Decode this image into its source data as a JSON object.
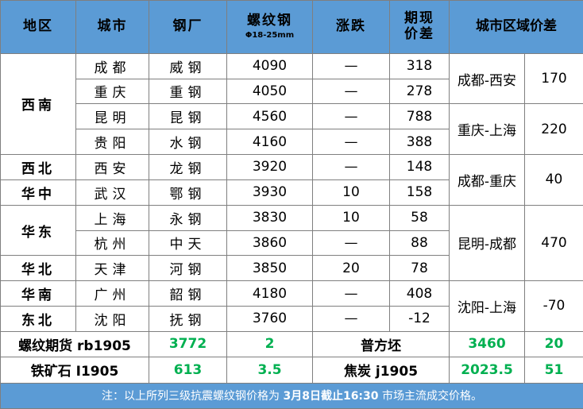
{
  "header": {
    "region": "地区",
    "city": "城市",
    "mill": "钢厂",
    "rebar": "螺纹钢",
    "rebar_spec": "Φ18-25mm",
    "change": "涨跌",
    "basis_line1": "期现",
    "basis_line2": "价差",
    "city_spread": "城市区域价差"
  },
  "rows": [
    {
      "city": "成都",
      "mill": "威钢",
      "price": "4090",
      "change": "—",
      "basis": "318"
    },
    {
      "city": "重庆",
      "mill": "重钢",
      "price": "4050",
      "change": "—",
      "basis": "278"
    },
    {
      "city": "昆明",
      "mill": "昆钢",
      "price": "4560",
      "change": "—",
      "basis": "788"
    },
    {
      "city": "贵阳",
      "mill": "水钢",
      "price": "4160",
      "change": "—",
      "basis": "388"
    },
    {
      "city": "西安",
      "mill": "龙钢",
      "price": "3920",
      "change": "—",
      "basis": "148"
    },
    {
      "city": "武汉",
      "mill": "鄂钢",
      "price": "3930",
      "change": "10",
      "basis": "158"
    },
    {
      "city": "上海",
      "mill": "永钢",
      "price": "3830",
      "change": "10",
      "basis": "58"
    },
    {
      "city": "杭州",
      "mill": "中天",
      "price": "3860",
      "change": "—",
      "basis": "88"
    },
    {
      "city": "天津",
      "mill": "河钢",
      "price": "3850",
      "change": "20",
      "basis": "78"
    },
    {
      "city": "广州",
      "mill": "韶钢",
      "price": "4180",
      "change": "—",
      "basis": "408"
    },
    {
      "city": "沈阳",
      "mill": "抚钢",
      "price": "3760",
      "change": "—",
      "basis": "-12"
    }
  ],
  "regions": [
    "西南",
    "西北",
    "华中",
    "华东",
    "华北",
    "华南",
    "东北"
  ],
  "spreads": [
    {
      "pair": "成都-西安",
      "value": "170"
    },
    {
      "pair": "重庆-上海",
      "value": "220"
    },
    {
      "pair": "成都-重庆",
      "value": "40"
    },
    {
      "pair": "昆明-成都",
      "value": "470"
    },
    {
      "pair": "沈阳-上海",
      "value": "-70"
    }
  ],
  "futures": [
    {
      "name": "螺纹期货 rb1905",
      "price": "3772",
      "change": "2",
      "name2": "普方坯",
      "price2": "3460",
      "change2": "20"
    },
    {
      "name": "铁矿石 I1905",
      "price": "613",
      "change": "3.5",
      "name2": "焦炭 j1905",
      "price2": "2023.5",
      "change2": "51"
    }
  ],
  "note": {
    "prefix": "注：以上所列三级抗震螺纹钢价格为 ",
    "bold": "3月8日截止16:30",
    "suffix": " 市场主流成交价格。"
  },
  "colors": {
    "header_bg": "#5b9bd5",
    "up": "#00b050",
    "basis": "#ff0000"
  }
}
